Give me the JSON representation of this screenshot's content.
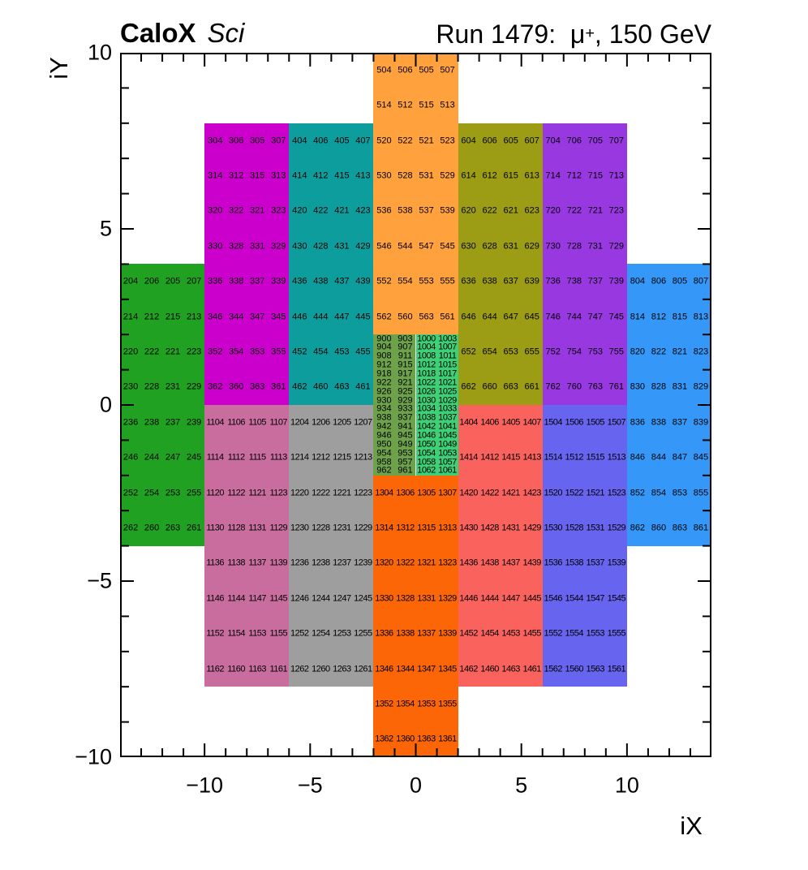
{
  "header": {
    "left_bold": "CaloX",
    "left_italic": "Sci",
    "right_prefix": "Run 1479:  μ",
    "right_sup": "+",
    "right_suffix": ", 150 GeV"
  },
  "chart_data": {
    "type": "heatmap",
    "title": "CaloX Sci",
    "subtitle": "Run 1479: μ+, 150 GeV",
    "xlabel": "iX",
    "ylabel": "iY",
    "x_range": [
      -14,
      14
    ],
    "y_range": [
      -10,
      10
    ],
    "x_ticks": [
      -10,
      -5,
      0,
      5,
      10
    ],
    "y_ticks": [
      10,
      5,
      0,
      -5,
      -10
    ],
    "minor_tick_step": 1,
    "grid": false,
    "cell_text_color": "#000000",
    "blocks": [
      {
        "id": "green-left",
        "color": "#21a121",
        "x0": -14,
        "x1": -10,
        "y_top": 4,
        "row_h": 1,
        "rows": [
          [
            204,
            206,
            205,
            207
          ],
          [
            214,
            212,
            215,
            213
          ],
          [
            220,
            222,
            221,
            223
          ],
          [
            230,
            228,
            231,
            229
          ],
          [
            236,
            238,
            237,
            239
          ],
          [
            246,
            244,
            247,
            245
          ],
          [
            252,
            254,
            253,
            255
          ],
          [
            262,
            260,
            263,
            261
          ]
        ]
      },
      {
        "id": "magenta",
        "color": "#cc00cc",
        "x0": -10,
        "x1": -6,
        "y_top": 8,
        "row_h": 1,
        "rows": [
          [
            304,
            306,
            305,
            307
          ],
          [
            314,
            312,
            315,
            313
          ],
          [
            320,
            322,
            321,
            323
          ],
          [
            330,
            328,
            331,
            329
          ],
          [
            336,
            338,
            337,
            339
          ],
          [
            346,
            344,
            347,
            345
          ],
          [
            352,
            354,
            353,
            355
          ],
          [
            362,
            360,
            363,
            361
          ]
        ]
      },
      {
        "id": "teal",
        "color": "#0d9d9d",
        "x0": -6,
        "x1": -2,
        "y_top": 8,
        "row_h": 1,
        "rows": [
          [
            404,
            406,
            405,
            407
          ],
          [
            414,
            412,
            415,
            413
          ],
          [
            420,
            422,
            421,
            423
          ],
          [
            430,
            428,
            431,
            429
          ],
          [
            436,
            438,
            437,
            439
          ],
          [
            446,
            444,
            447,
            445
          ],
          [
            452,
            454,
            453,
            455
          ],
          [
            462,
            460,
            463,
            461
          ]
        ]
      },
      {
        "id": "orange-top",
        "color": "#ffa13d",
        "x0": -2,
        "x1": 2,
        "y_top": 10,
        "row_h": 1,
        "rows": [
          [
            504,
            506,
            505,
            507
          ],
          [
            514,
            512,
            515,
            513
          ],
          [
            520,
            522,
            521,
            523
          ],
          [
            530,
            528,
            531,
            529
          ],
          [
            536,
            538,
            537,
            539
          ],
          [
            546,
            544,
            547,
            545
          ],
          [
            552,
            554,
            553,
            555
          ],
          [
            562,
            560,
            563,
            561
          ]
        ]
      },
      {
        "id": "olive",
        "color": "#9d9d15",
        "x0": 2,
        "x1": 6,
        "y_top": 8,
        "row_h": 1,
        "rows": [
          [
            604,
            606,
            605,
            607
          ],
          [
            614,
            612,
            615,
            613
          ],
          [
            620,
            622,
            621,
            623
          ],
          [
            630,
            628,
            631,
            629
          ],
          [
            636,
            638,
            637,
            639
          ],
          [
            646,
            644,
            647,
            645
          ],
          [
            652,
            654,
            653,
            655
          ],
          [
            662,
            660,
            663,
            661
          ]
        ]
      },
      {
        "id": "purple",
        "color": "#9838e0",
        "x0": 6,
        "x1": 10,
        "y_top": 8,
        "row_h": 1,
        "rows": [
          [
            704,
            706,
            705,
            707
          ],
          [
            714,
            712,
            715,
            713
          ],
          [
            720,
            722,
            721,
            723
          ],
          [
            730,
            728,
            731,
            729
          ],
          [
            736,
            738,
            737,
            739
          ],
          [
            746,
            744,
            747,
            745
          ],
          [
            752,
            754,
            753,
            755
          ],
          [
            762,
            760,
            763,
            761
          ]
        ]
      },
      {
        "id": "blue-right",
        "color": "#3598f8",
        "x0": 10,
        "x1": 14,
        "y_top": 4,
        "row_h": 1,
        "rows": [
          [
            804,
            806,
            805,
            807
          ],
          [
            814,
            812,
            815,
            813
          ],
          [
            820,
            822,
            821,
            823
          ],
          [
            830,
            828,
            831,
            829
          ],
          [
            836,
            838,
            837,
            839
          ],
          [
            846,
            844,
            847,
            845
          ],
          [
            852,
            854,
            853,
            855
          ],
          [
            862,
            860,
            863,
            861
          ]
        ]
      },
      {
        "id": "center-900",
        "color": "#6da24b",
        "x0": -2,
        "x1": 0,
        "y_top": 2,
        "row_h": 0.25,
        "rows": [
          [
            900,
            903
          ],
          [
            904,
            907
          ],
          [
            908,
            911
          ],
          [
            912,
            915
          ],
          [
            918,
            917
          ],
          [
            922,
            921
          ],
          [
            926,
            925
          ],
          [
            930,
            929
          ],
          [
            934,
            933
          ],
          [
            938,
            937
          ],
          [
            942,
            941
          ],
          [
            946,
            945
          ],
          [
            950,
            949
          ],
          [
            954,
            953
          ],
          [
            958,
            957
          ],
          [
            962,
            961
          ]
        ]
      },
      {
        "id": "center-1000",
        "color": "#3dd077",
        "x0": 0,
        "x1": 2,
        "y_top": 2,
        "row_h": 0.25,
        "rows": [
          [
            1000,
            1003
          ],
          [
            1004,
            1007
          ],
          [
            1008,
            1011
          ],
          [
            1012,
            1015
          ],
          [
            1018,
            1017
          ],
          [
            1022,
            1021
          ],
          [
            1026,
            1025
          ],
          [
            1030,
            1029
          ],
          [
            1034,
            1033
          ],
          [
            1038,
            1037
          ],
          [
            1042,
            1041
          ],
          [
            1046,
            1045
          ],
          [
            1050,
            1049
          ],
          [
            1054,
            1053
          ],
          [
            1058,
            1057
          ],
          [
            1062,
            1061
          ]
        ]
      },
      {
        "id": "pink",
        "color": "#c96d9e",
        "x0": -10,
        "x1": -6,
        "y_top": 0,
        "row_h": 1,
        "rows": [
          [
            1104,
            1106,
            1105,
            1107
          ],
          [
            1114,
            1112,
            1115,
            1113
          ],
          [
            1120,
            1122,
            1121,
            1123
          ],
          [
            1130,
            1128,
            1131,
            1129
          ],
          [
            1136,
            1138,
            1137,
            1139
          ],
          [
            1146,
            1144,
            1147,
            1145
          ],
          [
            1152,
            1154,
            1153,
            1155
          ],
          [
            1162,
            1160,
            1163,
            1161
          ]
        ]
      },
      {
        "id": "gray",
        "color": "#9e9e9e",
        "x0": -6,
        "x1": -2,
        "y_top": 0,
        "row_h": 1,
        "rows": [
          [
            1204,
            1206,
            1205,
            1207
          ],
          [
            1214,
            1212,
            1215,
            1213
          ],
          [
            1220,
            1222,
            1221,
            1223
          ],
          [
            1230,
            1228,
            1231,
            1229
          ],
          [
            1236,
            1238,
            1237,
            1239
          ],
          [
            1246,
            1244,
            1247,
            1245
          ],
          [
            1252,
            1254,
            1253,
            1255
          ],
          [
            1262,
            1260,
            1263,
            1261
          ]
        ]
      },
      {
        "id": "orange-bottom",
        "color": "#fc6607",
        "x0": -2,
        "x1": 2,
        "y_top": -2,
        "row_h": 1,
        "rows": [
          [
            1304,
            1306,
            1305,
            1307
          ],
          [
            1314,
            1312,
            1315,
            1313
          ],
          [
            1320,
            1322,
            1321,
            1323
          ],
          [
            1330,
            1328,
            1331,
            1329
          ],
          [
            1336,
            1338,
            1337,
            1339
          ],
          [
            1346,
            1344,
            1347,
            1345
          ],
          [
            1352,
            1354,
            1353,
            1355
          ],
          [
            1362,
            1360,
            1363,
            1361
          ]
        ]
      },
      {
        "id": "red",
        "color": "#f9625d",
        "x0": 2,
        "x1": 6,
        "y_top": 0,
        "row_h": 1,
        "rows": [
          [
            1404,
            1406,
            1405,
            1407
          ],
          [
            1414,
            1412,
            1415,
            1413
          ],
          [
            1420,
            1422,
            1421,
            1423
          ],
          [
            1430,
            1428,
            1431,
            1429
          ],
          [
            1436,
            1438,
            1437,
            1439
          ],
          [
            1446,
            1444,
            1447,
            1445
          ],
          [
            1452,
            1454,
            1453,
            1455
          ],
          [
            1462,
            1460,
            1463,
            1461
          ]
        ]
      },
      {
        "id": "violet",
        "color": "#6765f0",
        "x0": 6,
        "x1": 10,
        "y_top": 0,
        "row_h": 1,
        "rows": [
          [
            1504,
            1506,
            1505,
            1507
          ],
          [
            1514,
            1512,
            1515,
            1513
          ],
          [
            1520,
            1522,
            1521,
            1523
          ],
          [
            1530,
            1528,
            1531,
            1529
          ],
          [
            1536,
            1538,
            1537,
            1539
          ],
          [
            1546,
            1544,
            1547,
            1545
          ],
          [
            1552,
            1554,
            1553,
            1555
          ],
          [
            1562,
            1560,
            1563,
            1561
          ]
        ]
      }
    ]
  }
}
